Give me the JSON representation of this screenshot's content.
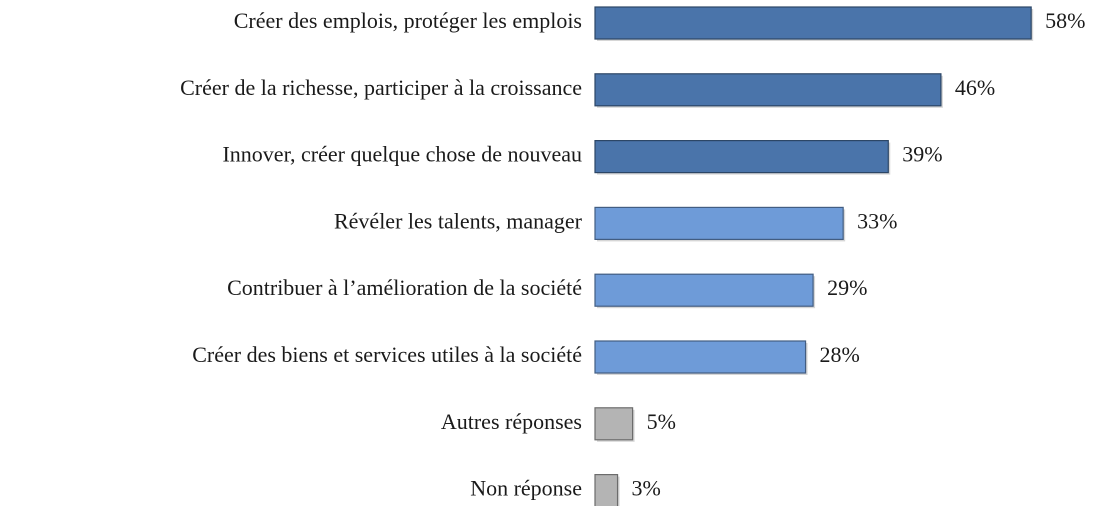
{
  "chart_data": {
    "type": "hbar",
    "categories": [
      "Créer des emplois, protéger les emplois",
      "Créer de la richesse, participer à la croissance",
      "Innover, créer quelque chose de nouveau",
      "Révéler les talents, manager",
      "Contribuer à l’amélioration de la société",
      "Créer des biens et services utiles à la société",
      "Autres réponses",
      "Non réponse"
    ],
    "values": [
      58,
      46,
      39,
      33,
      29,
      28,
      5,
      3
    ],
    "value_labels": [
      "58%",
      "46%",
      "39%",
      "33%",
      "29%",
      "28%",
      "5%",
      "3%"
    ],
    "colors": [
      "#4a74aa",
      "#4a74aa",
      "#4a74aa",
      "#6e9bd8",
      "#6e9bd8",
      "#6e9bd8",
      "#b4b4b4",
      "#b4b4b4"
    ],
    "grid": false
  }
}
